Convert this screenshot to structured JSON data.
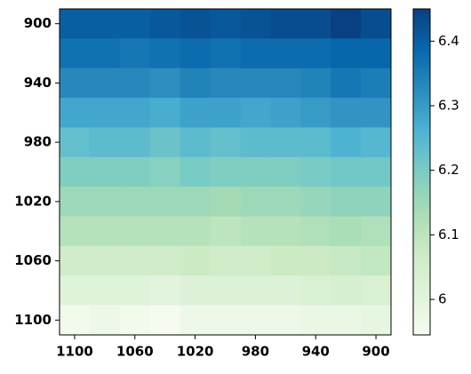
{
  "chart_data": {
    "type": "heatmap",
    "x_categories": [
      "1100",
      null,
      "1060",
      null,
      "1020",
      null,
      "980",
      null,
      "940",
      null,
      "900"
    ],
    "y_categories": [
      "900",
      null,
      "940",
      null,
      "980",
      null,
      "1020",
      null,
      "1060",
      null,
      "1100"
    ],
    "values": [
      [
        6.4,
        6.4,
        6.4,
        6.41,
        6.42,
        6.41,
        6.42,
        6.43,
        6.43,
        6.45,
        6.43
      ],
      [
        6.37,
        6.37,
        6.36,
        6.37,
        6.38,
        6.37,
        6.38,
        6.38,
        6.38,
        6.39,
        6.39
      ],
      [
        6.33,
        6.33,
        6.33,
        6.32,
        6.34,
        6.33,
        6.33,
        6.33,
        6.34,
        6.36,
        6.35
      ],
      [
        6.28,
        6.28,
        6.28,
        6.27,
        6.29,
        6.29,
        6.28,
        6.29,
        6.3,
        6.31,
        6.31
      ],
      [
        6.23,
        6.24,
        6.24,
        6.22,
        6.24,
        6.23,
        6.24,
        6.24,
        6.24,
        6.26,
        6.25
      ],
      [
        6.19,
        6.19,
        6.19,
        6.18,
        6.2,
        6.19,
        6.19,
        6.19,
        6.2,
        6.21,
        6.21
      ],
      [
        6.15,
        6.15,
        6.15,
        6.15,
        6.15,
        6.14,
        6.15,
        6.15,
        6.16,
        6.17,
        6.17
      ],
      [
        6.11,
        6.11,
        6.11,
        6.11,
        6.11,
        6.1,
        6.11,
        6.11,
        6.12,
        6.13,
        6.12
      ],
      [
        6.06,
        6.06,
        6.06,
        6.06,
        6.07,
        6.06,
        6.06,
        6.07,
        6.07,
        6.08,
        6.09
      ],
      [
        6.01,
        6.01,
        6.01,
        6.0,
        6.02,
        6.02,
        6.02,
        6.02,
        6.03,
        6.04,
        6.03
      ],
      [
        5.96,
        5.97,
        5.96,
        5.95,
        5.97,
        5.97,
        5.97,
        5.97,
        5.98,
        5.98,
        5.99
      ]
    ],
    "colormap": [
      "#f7fcf0",
      "#e0f3db",
      "#ccebc5",
      "#a8ddb5",
      "#7bccc4",
      "#4eb3d3",
      "#2b8cbe",
      "#0868ac",
      "#084081"
    ],
    "clim": [
      5.945,
      6.45
    ],
    "cticks": [
      6.0,
      6.1,
      6.2,
      6.3,
      6.4
    ]
  }
}
